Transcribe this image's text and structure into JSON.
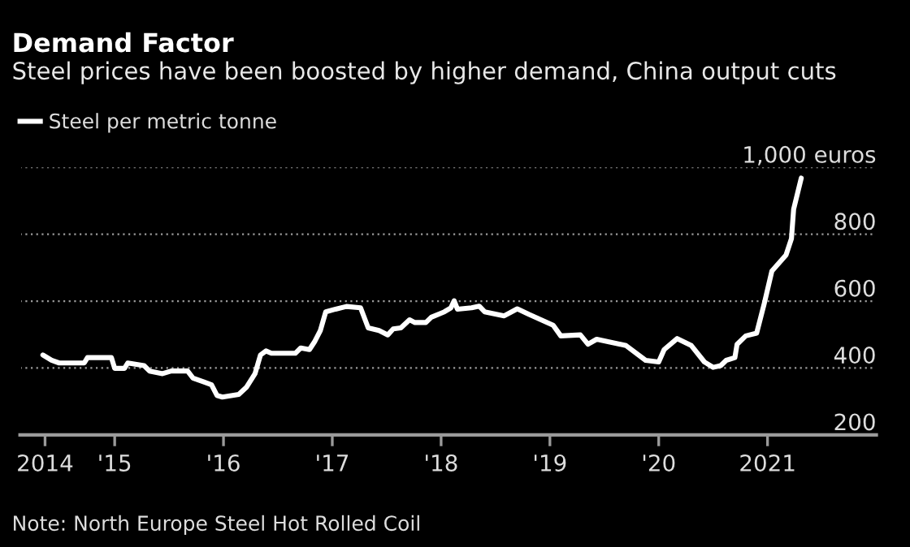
{
  "chart_data": {
    "type": "line",
    "title": "Demand Factor",
    "subtitle": "Steel prices have been boosted by higher demand, China output cuts",
    "x": [
      2014.34,
      2014.42,
      2014.49,
      2014.72,
      2014.75,
      2014.97,
      2015.0,
      2015.09,
      2015.12,
      2015.27,
      2015.32,
      2015.44,
      2015.52,
      2015.67,
      2015.72,
      2015.82,
      2015.89,
      2015.94,
      2015.99,
      2016.14,
      2016.21,
      2016.29,
      2016.34,
      2016.39,
      2016.44,
      2016.66,
      2016.71,
      2016.79,
      2016.84,
      2016.89,
      2016.94,
      2017.03,
      2017.13,
      2017.26,
      2017.33,
      2017.43,
      2017.51,
      2017.56,
      2017.63,
      2017.71,
      2017.76,
      2017.86,
      2017.91,
      2018.03,
      2018.09,
      2018.12,
      2018.15,
      2018.28,
      2018.35,
      2018.4,
      2018.58,
      2018.7,
      2018.81,
      2019.03,
      2019.1,
      2019.28,
      2019.35,
      2019.43,
      2019.7,
      2019.88,
      2020.0,
      2020.05,
      2020.17,
      2020.3,
      2020.42,
      2020.5,
      2020.57,
      2020.62,
      2020.7,
      2020.72,
      2020.8,
      2020.9,
      2020.97,
      2021.04,
      2021.17,
      2021.22,
      2021.24,
      2021.31
    ],
    "series": [
      {
        "name": "Steel per metric tonne",
        "color": "#ffffff",
        "values": [
          439,
          423,
          415,
          415,
          431,
          431,
          399,
          399,
          415,
          407,
          391,
          383,
          391,
          391,
          370,
          358,
          350,
          318,
          313,
          321,
          342,
          383,
          439,
          451,
          444,
          444,
          460,
          455,
          480,
          512,
          568,
          576,
          584,
          580,
          520,
          512,
          499,
          517,
          520,
          544,
          536,
          536,
          552,
          568,
          580,
          601,
          576,
          580,
          585,
          568,
          556,
          577,
          560,
          528,
          496,
          499,
          471,
          486,
          467,
          423,
          418,
          455,
          488,
          467,
          418,
          402,
          407,
          423,
          431,
          471,
          496,
          504,
          593,
          690,
          738,
          787,
          875,
          968
        ]
      }
    ],
    "xlim": [
      2014.13,
      2022.0
    ],
    "xticks": [
      {
        "value": 2014.36,
        "label": "2014"
      },
      {
        "value": 2015,
        "label": "'15"
      },
      {
        "value": 2016,
        "label": "'16"
      },
      {
        "value": 2017,
        "label": "'17"
      },
      {
        "value": 2018,
        "label": "'18"
      },
      {
        "value": 2019,
        "label": "'19"
      },
      {
        "value": 2020,
        "label": "'20"
      },
      {
        "value": 2021,
        "label": "2021"
      }
    ],
    "ylim": [
      200,
      1000
    ],
    "yticks": [
      200,
      400,
      600,
      800,
      {
        "value": 1000,
        "label": "1,000 euros"
      }
    ],
    "grid": "y",
    "legend": "top left",
    "marker": "none",
    "line_style": "solid",
    "annotations": [
      "Note: North Europe Steel Hot Rolled Coil"
    ]
  }
}
